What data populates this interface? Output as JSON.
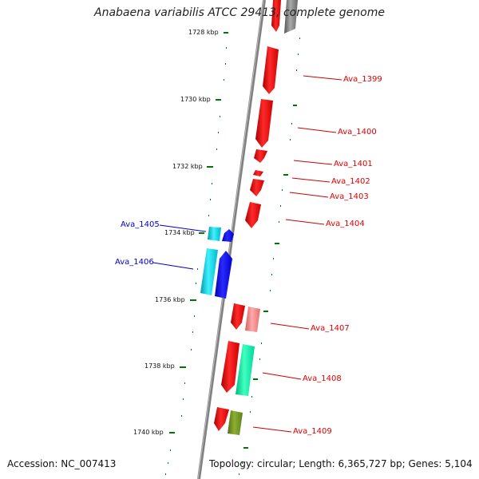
{
  "title": "Anabaena variabilis ATCC 29413, complete genome",
  "footer": {
    "accession": "Accession: NC_007413",
    "topology": "Topology: circular; Length: 6,365,727 bp; Genes: 5,104"
  },
  "ticks": [
    "1728 kbp",
    "1730 kbp",
    "1732 kbp",
    "1734 kbp",
    "1736 kbp",
    "1738 kbp",
    "1740 kbp"
  ],
  "genes": [
    {
      "name": "Ava_1399",
      "color": "#dd0000"
    },
    {
      "name": "Ava_1400",
      "color": "#dd0000"
    },
    {
      "name": "Ava_1401",
      "color": "#dd0000"
    },
    {
      "name": "Ava_1402",
      "color": "#dd0000"
    },
    {
      "name": "Ava_1403",
      "color": "#dd0000"
    },
    {
      "name": "Ava_1404",
      "color": "#dd0000"
    },
    {
      "name": "Ava_1405",
      "color": "#0000cc"
    },
    {
      "name": "Ava_1406",
      "color": "#0000cc"
    },
    {
      "name": "Ava_1407",
      "color": "#dd0000"
    },
    {
      "name": "Ava_1408",
      "color": "#dd0000"
    },
    {
      "name": "Ava_1409",
      "color": "#dd0000"
    }
  ],
  "colors": {
    "backbone": "#888888",
    "forward_gene": "#ff0000",
    "reverse_gene": "#0000ee",
    "cds_cyan": "#00c8d8",
    "cds_green": "#00e8a0",
    "cds_olive": "#6b8e23",
    "cds_pink": "#f08080",
    "cds_grey": "#777777",
    "tick": "#007700"
  }
}
